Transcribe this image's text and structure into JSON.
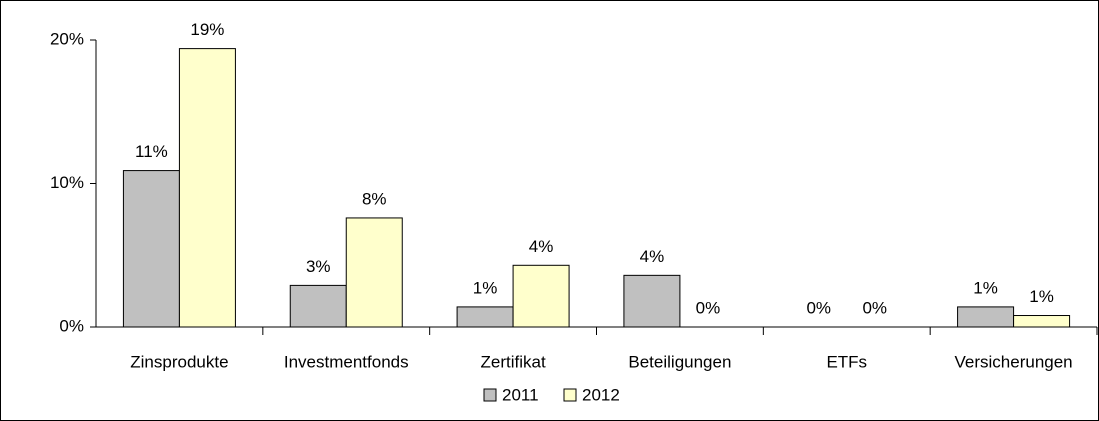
{
  "chart_data": {
    "type": "bar",
    "categories": [
      "Zinsprodukte",
      "Investmentfonds",
      "Zertifikat",
      "Beteiligungen",
      "ETFs",
      "Versicherungen"
    ],
    "series": [
      {
        "name": "2011",
        "color": "#c0c0c0",
        "values": [
          10.9,
          2.9,
          1.4,
          3.6,
          0,
          1.4
        ],
        "value_labels": [
          "11%",
          "3%",
          "1%",
          "4%",
          "0%",
          "1%"
        ]
      },
      {
        "name": "2012",
        "color": "#ffffcc",
        "values": [
          19.4,
          7.6,
          4.3,
          0,
          0,
          0.8
        ],
        "value_labels": [
          "19%",
          "8%",
          "4%",
          "0%",
          "0%",
          "1%"
        ]
      }
    ],
    "ylim": [
      0,
      20
    ],
    "yticks": [
      {
        "value": 0,
        "label": "0%"
      },
      {
        "value": 10,
        "label": "10%"
      },
      {
        "value": 20,
        "label": "20%"
      }
    ],
    "legend": "bottom"
  }
}
